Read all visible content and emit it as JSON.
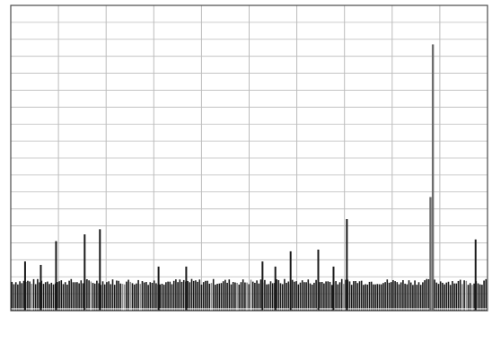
{
  "chart_data": {
    "type": "bar",
    "title": "",
    "xlabel": "",
    "ylabel": "",
    "grid": true,
    "legend": "none",
    "xlim": [
      0,
      10
    ],
    "ylim": [
      0,
      9
    ],
    "colors": {
      "background": "#ffffff",
      "grid": "#bcbcbc",
      "frame": "#4a4a4a",
      "bars": "#1a1a1a",
      "highlight": "#8c8c8c"
    },
    "noise_floor": 0.85,
    "spikes": [
      {
        "x": 0.3,
        "value": 1.45
      },
      {
        "x": 0.63,
        "value": 1.35
      },
      {
        "x": 0.95,
        "value": 2.05
      },
      {
        "x": 1.55,
        "value": 2.25
      },
      {
        "x": 1.87,
        "value": 2.4
      },
      {
        "x": 3.1,
        "value": 1.3
      },
      {
        "x": 3.68,
        "value": 1.3
      },
      {
        "x": 5.28,
        "value": 1.45
      },
      {
        "x": 5.55,
        "value": 1.3
      },
      {
        "x": 5.87,
        "value": 1.75
      },
      {
        "x": 6.45,
        "value": 1.8
      },
      {
        "x": 6.77,
        "value": 1.3
      },
      {
        "x": 7.05,
        "value": 2.7
      },
      {
        "x": 8.8,
        "value": 3.35
      },
      {
        "x": 8.85,
        "value": 7.85
      },
      {
        "x": 9.75,
        "value": 2.1
      }
    ]
  }
}
